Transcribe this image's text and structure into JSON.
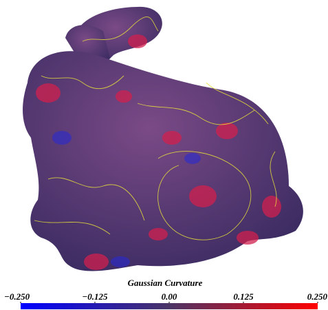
{
  "colorbar": {
    "title": "Gaussian Curvature",
    "lim": [
      -0.25,
      0.25
    ],
    "ticks": [
      {
        "value": -0.25,
        "label": "−0.250"
      },
      {
        "value": -0.125,
        "label": "−0.125"
      },
      {
        "value": 0,
        "label": "0.00"
      },
      {
        "value": 0.125,
        "label": "0.125"
      },
      {
        "value": 0.25,
        "label": "0.250"
      }
    ],
    "colors": [
      "#0000ff",
      "#4a3466",
      "#ff0000"
    ]
  }
}
